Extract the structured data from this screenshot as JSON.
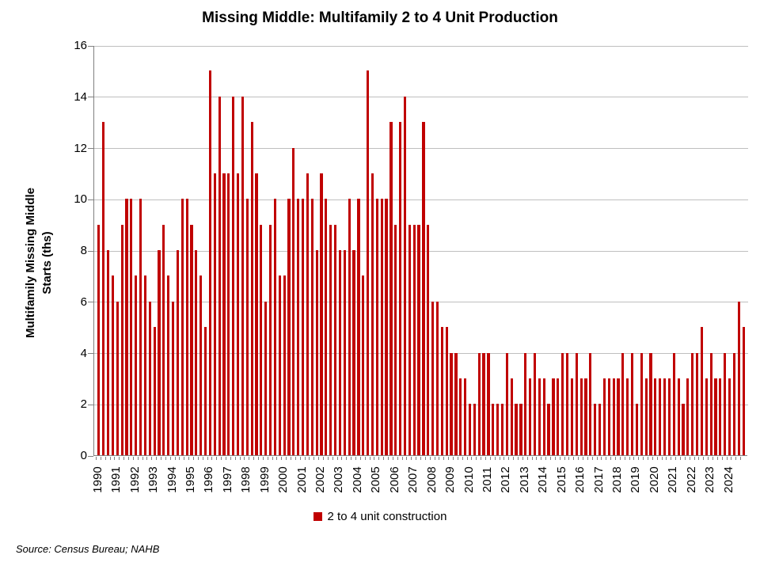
{
  "title": "Missing Middle: Multifamily 2 to 4 Unit Production",
  "y_axis": {
    "title_line1": "Multifamily Missing Middle",
    "title_line2": "Starts (ths)",
    "tick_labels": [
      "0",
      "2",
      "4",
      "6",
      "8",
      "10",
      "12",
      "14",
      "16"
    ]
  },
  "legend": {
    "label": "2 to 4 unit construction",
    "swatch_color": "#c00000"
  },
  "source": "Source: Census Bureau; NAHB",
  "colors": {
    "bar": "#c00000",
    "gridline": "#bfbfbf",
    "axis": "#808080",
    "text": "#000000"
  },
  "chart_data": {
    "type": "bar",
    "title": "Missing Middle: Multifamily 2 to 4 Unit Production",
    "xlabel": "",
    "ylabel": "Multifamily Missing Middle Starts (ths)",
    "ylim": [
      0,
      16
    ],
    "y_tick_step": 2,
    "grid": true,
    "legend_position": "bottom",
    "bar_color": "#c00000",
    "frequency": "quarterly",
    "year_labels": [
      "1990",
      "1991",
      "1992",
      "1993",
      "1994",
      "1995",
      "1996",
      "1997",
      "1998",
      "1999",
      "2000",
      "2001",
      "2002",
      "2003",
      "2004",
      "2005",
      "2006",
      "2007",
      "2008",
      "2009",
      "2010",
      "2011",
      "2012",
      "2013",
      "2014",
      "2015",
      "2016",
      "2017",
      "2018",
      "2019",
      "2020",
      "2021",
      "2022",
      "2023",
      "2024"
    ],
    "series": [
      {
        "name": "2 to 4 unit construction",
        "start": "1990Q1",
        "end": "2024Q4",
        "values": [
          9,
          13,
          8,
          7,
          6,
          9,
          10,
          10,
          7,
          10,
          7,
          6,
          5,
          8,
          9,
          7,
          6,
          8,
          10,
          10,
          9,
          8,
          7,
          5,
          15,
          11,
          14,
          11,
          11,
          14,
          11,
          14,
          10,
          13,
          11,
          9,
          6,
          9,
          10,
          7,
          7,
          10,
          12,
          10,
          10,
          11,
          10,
          8,
          11,
          10,
          9,
          9,
          8,
          8,
          10,
          8,
          10,
          7,
          15,
          11,
          10,
          10,
          10,
          13,
          9,
          13,
          14,
          9,
          9,
          9,
          13,
          9,
          6,
          6,
          5,
          5,
          4,
          4,
          3,
          3,
          2,
          2,
          4,
          4,
          4,
          2,
          2,
          2,
          4,
          3,
          2,
          2,
          4,
          3,
          4,
          3,
          3,
          2,
          3,
          3,
          4,
          4,
          3,
          4,
          3,
          3,
          4,
          2,
          2,
          3,
          3,
          3,
          3,
          4,
          3,
          4,
          2,
          4,
          3,
          4,
          3,
          3,
          3,
          3,
          4,
          3,
          2,
          3,
          4,
          4,
          5,
          3,
          4,
          3,
          3,
          4,
          3,
          4,
          6,
          5
        ]
      }
    ]
  }
}
